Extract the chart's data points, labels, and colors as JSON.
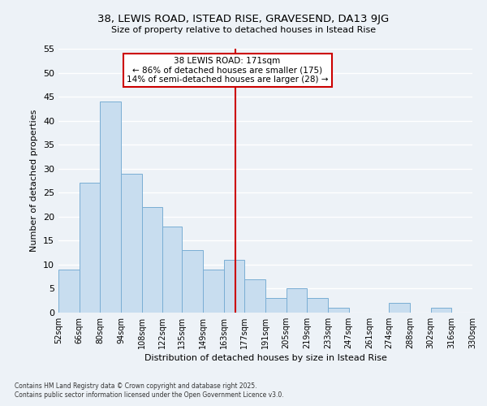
{
  "title": "38, LEWIS ROAD, ISTEAD RISE, GRAVESEND, DA13 9JG",
  "subtitle": "Size of property relative to detached houses in Istead Rise",
  "xlabel": "Distribution of detached houses by size in Istead Rise",
  "ylabel": "Number of detached properties",
  "bar_edges": [
    52,
    66,
    80,
    94,
    108,
    122,
    135,
    149,
    163,
    177,
    191,
    205,
    219,
    233,
    247,
    261,
    274,
    288,
    302,
    316,
    330
  ],
  "bar_heights": [
    9,
    27,
    44,
    29,
    22,
    18,
    13,
    9,
    11,
    7,
    3,
    5,
    3,
    1,
    0,
    0,
    2,
    0,
    1,
    0
  ],
  "bar_color": "#c8ddef",
  "bar_edgecolor": "#7aaed4",
  "vline_x": 171,
  "vline_color": "#cc0000",
  "ylim": [
    0,
    55
  ],
  "yticks": [
    0,
    5,
    10,
    15,
    20,
    25,
    30,
    35,
    40,
    45,
    50,
    55
  ],
  "annotation_title": "38 LEWIS ROAD: 171sqm",
  "annotation_line1": "← 86% of detached houses are smaller (175)",
  "annotation_line2": "14% of semi-detached houses are larger (28) →",
  "annotation_box_facecolor": "#ffffff",
  "annotation_box_edgecolor": "#cc0000",
  "bg_color": "#edf2f7",
  "grid_color": "#ffffff",
  "footer1": "Contains HM Land Registry data © Crown copyright and database right 2025.",
  "footer2": "Contains public sector information licensed under the Open Government Licence v3.0.",
  "tick_labels": [
    "52sqm",
    "66sqm",
    "80sqm",
    "94sqm",
    "108sqm",
    "122sqm",
    "135sqm",
    "149sqm",
    "163sqm",
    "177sqm",
    "191sqm",
    "205sqm",
    "219sqm",
    "233sqm",
    "247sqm",
    "261sqm",
    "274sqm",
    "288sqm",
    "302sqm",
    "316sqm",
    "330sqm"
  ]
}
